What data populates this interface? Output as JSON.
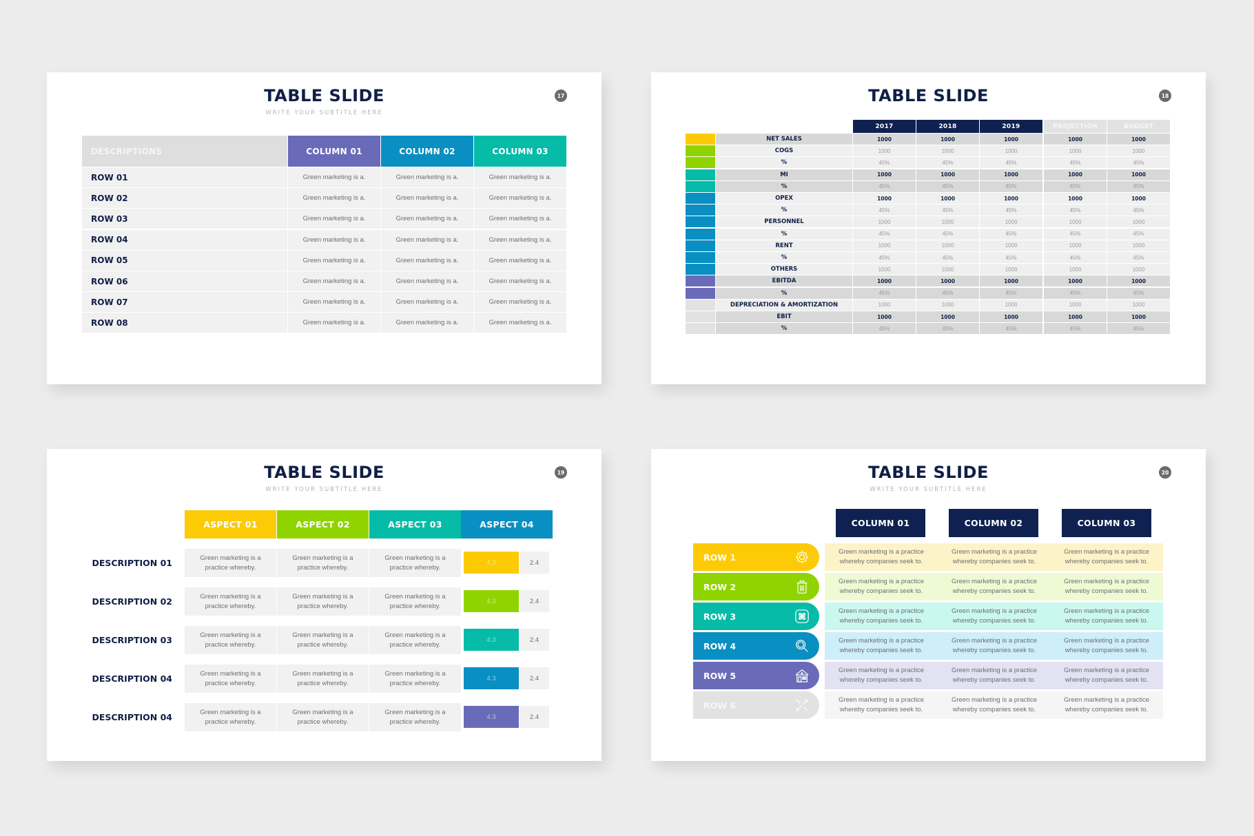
{
  "slides": [
    {
      "number": "17",
      "title": "TABLE SLIDE",
      "subtitle": "WRITE YOUR SUBTITLE HERE",
      "table": {
        "header_desc": "DESCRIPTIONS",
        "columns": [
          {
            "label": "COLUMN 01",
            "color": "#6a6bb8"
          },
          {
            "label": "COLUMN 02",
            "color": "#0a8fc2"
          },
          {
            "label": "COLUMN 03",
            "color": "#06bba8"
          }
        ],
        "rows": [
          {
            "label": "ROW 01",
            "cells": [
              "Green marketing is a.",
              "Green marketing is a.",
              "Green marketing is a."
            ]
          },
          {
            "label": "ROW 02",
            "cells": [
              "Green marketing is a.",
              "Green marketing is a.",
              "Green marketing is a."
            ]
          },
          {
            "label": "ROW 03",
            "cells": [
              "Green marketing is a.",
              "Green marketing is a.",
              "Green marketing is a."
            ]
          },
          {
            "label": "ROW 04",
            "cells": [
              "Green marketing is a.",
              "Green marketing is a.",
              "Green marketing is a."
            ]
          },
          {
            "label": "ROW 05",
            "cells": [
              "Green marketing is a.",
              "Green marketing is a.",
              "Green marketing is a."
            ]
          },
          {
            "label": "ROW 06",
            "cells": [
              "Green marketing is a.",
              "Green marketing is a.",
              "Green marketing is a."
            ]
          },
          {
            "label": "ROW 07",
            "cells": [
              "Green marketing is a.",
              "Green marketing is a.",
              "Green marketing is a."
            ]
          },
          {
            "label": "ROW 08",
            "cells": [
              "Green marketing is a.",
              "Green marketing is a.",
              "Green marketing is a."
            ]
          }
        ]
      }
    },
    {
      "number": "18",
      "title": "TABLE SLIDE",
      "table": {
        "columns": [
          {
            "label": "2017",
            "bg": "#0f2150",
            "fg": "#ffffff"
          },
          {
            "label": "2018",
            "bg": "#0f2150",
            "fg": "#ffffff"
          },
          {
            "label": "2019",
            "bg": "#0f2150",
            "fg": "#ffffff"
          },
          {
            "label": "PROJECTION",
            "bg": "#e2e2e2",
            "fg": "#f6f6f6"
          },
          {
            "label": "BUDGET",
            "bg": "#e2e2e2",
            "fg": "#f6f6f6"
          }
        ],
        "rows": [
          {
            "label": "NET SALES",
            "color": "#fccb05",
            "shade": "dark",
            "bold": true,
            "values": [
              "1000",
              "1000",
              "1000",
              "1000",
              "1000"
            ]
          },
          {
            "label": "COGS",
            "color": "#8fd400",
            "shade": "light",
            "bold": false,
            "values": [
              "1000",
              "1000",
              "1000",
              "1000",
              "1000"
            ]
          },
          {
            "label": "%",
            "color": "#8fd400",
            "shade": "light",
            "bold": false,
            "values": [
              "45%",
              "45%",
              "45%",
              "45%",
              "45%"
            ]
          },
          {
            "label": "MI",
            "color": "#06bba8",
            "shade": "dark",
            "bold": true,
            "values": [
              "1000",
              "1000",
              "1000",
              "1000",
              "1000"
            ]
          },
          {
            "label": "%",
            "color": "#06bba8",
            "shade": "dark",
            "bold": false,
            "values": [
              "45%",
              "45%",
              "45%",
              "45%",
              "45%"
            ]
          },
          {
            "label": "OPEX",
            "color": "#0a8fc2",
            "shade": "light",
            "bold": true,
            "values": [
              "1000",
              "1000",
              "1000",
              "1000",
              "1000"
            ]
          },
          {
            "label": "%",
            "color": "#0a8fc2",
            "shade": "light",
            "bold": false,
            "values": [
              "45%",
              "45%",
              "45%",
              "45%",
              "45%"
            ]
          },
          {
            "label": "PERSONNEL",
            "color": "#0a8fc2",
            "shade": "light",
            "bold": false,
            "values": [
              "1000",
              "1000",
              "1000",
              "1000",
              "1000"
            ]
          },
          {
            "label": "%",
            "color": "#0a8fc2",
            "shade": "light",
            "bold": false,
            "values": [
              "45%",
              "45%",
              "45%",
              "45%",
              "45%"
            ]
          },
          {
            "label": "RENT",
            "color": "#0a8fc2",
            "shade": "light",
            "bold": false,
            "values": [
              "1000",
              "1000",
              "1000",
              "1000",
              "1000"
            ]
          },
          {
            "label": "%",
            "color": "#0a8fc2",
            "shade": "light",
            "bold": false,
            "values": [
              "45%",
              "45%",
              "45%",
              "45%",
              "45%"
            ]
          },
          {
            "label": "OTHERS",
            "color": "#0a8fc2",
            "shade": "light",
            "bold": false,
            "values": [
              "1000",
              "1000",
              "1000",
              "1000",
              "1000"
            ]
          },
          {
            "label": "EBITDA",
            "color": "#6a6bb8",
            "shade": "dark",
            "bold": true,
            "values": [
              "1000",
              "1000",
              "1000",
              "1000",
              "1000"
            ]
          },
          {
            "label": "%",
            "color": "#6a6bb8",
            "shade": "dark",
            "bold": false,
            "values": [
              "45%",
              "45%",
              "45%",
              "45%",
              "45%"
            ]
          },
          {
            "label": "DEPRECIATION & AMORTIZATION",
            "color": "#e2e2e2",
            "shade": "light",
            "bold": false,
            "values": [
              "1000",
              "1000",
              "1000",
              "1000",
              "1000"
            ]
          },
          {
            "label": "EBIT",
            "color": "#e2e2e2",
            "shade": "dark",
            "bold": true,
            "values": [
              "1000",
              "1000",
              "1000",
              "1000",
              "1000"
            ]
          },
          {
            "label": "%",
            "color": "#e2e2e2",
            "shade": "dark",
            "bold": false,
            "values": [
              "45%",
              "45%",
              "45%",
              "45%",
              "45%"
            ]
          }
        ]
      }
    },
    {
      "number": "19",
      "title": "TABLE SLIDE",
      "subtitle": "WRITE YOUR SUBTITLE HERE",
      "table": {
        "columns": [
          {
            "label": "ASPECT 01",
            "color": "#fccb05"
          },
          {
            "label": "ASPECT 02",
            "color": "#8fd400"
          },
          {
            "label": "ASPECT 03",
            "color": "#06bba8"
          },
          {
            "label": "ASPECT 04",
            "color": "#0a8fc2"
          }
        ],
        "rows": [
          {
            "label": "DESCRIPTION 01",
            "cells": [
              "Green marketing is a practice whereby.",
              "Green marketing is a practice whereby.",
              "Green marketing is a practice whereby."
            ],
            "bar_value": "4.3",
            "value": "2.4",
            "bar_color": "#fccb05"
          },
          {
            "label": "DESCRIPTION 02",
            "cells": [
              "Green marketing is a practice whereby.",
              "Green marketing is a practice whereby.",
              "Green marketing is a practice whereby."
            ],
            "bar_value": "4.3",
            "value": "2.4",
            "bar_color": "#8fd400"
          },
          {
            "label": "DESCRIPTION 03",
            "cells": [
              "Green marketing is a practice whereby.",
              "Green marketing is a practice whereby.",
              "Green marketing is a practice whereby."
            ],
            "bar_value": "4.3",
            "value": "2.4",
            "bar_color": "#06bba8"
          },
          {
            "label": "DESCRIPTION 04",
            "cells": [
              "Green marketing is a practice whereby.",
              "Green marketing is a practice whereby.",
              "Green marketing is a practice whereby."
            ],
            "bar_value": "4.3",
            "value": "2.4",
            "bar_color": "#0a8fc2"
          },
          {
            "label": "DESCRIPTION 04",
            "cells": [
              "Green marketing is a practice whereby.",
              "Green marketing is a practice whereby.",
              "Green marketing is a practice whereby."
            ],
            "bar_value": "4.3",
            "value": "2.4",
            "bar_color": "#6a6bb8"
          }
        ]
      }
    },
    {
      "number": "20",
      "title": "TABLE SLIDE",
      "subtitle": "WRITE YOUR SUBTITLE HERE",
      "table": {
        "columns": [
          "COLUMN 01",
          "COLUMN 02",
          "COLUMN 03"
        ],
        "rows": [
          {
            "label": "ROW 1",
            "icon": "gear-icon",
            "color": "#fccb05",
            "band": "#fdf3c8",
            "label_color": "#ffffff",
            "cells": [
              "Green marketing is a practice whereby companies seek to.",
              "Green marketing is a practice whereby companies seek to.",
              "Green marketing is a practice whereby companies seek to."
            ]
          },
          {
            "label": "ROW 2",
            "icon": "trash-icon",
            "color": "#8fd400",
            "band": "#eefad4",
            "label_color": "#ffffff",
            "cells": [
              "Green marketing is a practice whereby companies seek to.",
              "Green marketing is a practice whereby companies seek to.",
              "Green marketing is a practice whereby companies seek to."
            ]
          },
          {
            "label": "ROW 3",
            "icon": "bandage-icon",
            "color": "#06bba8",
            "band": "#cbf7f1",
            "label_color": "#ffffff",
            "cells": [
              "Green marketing is a practice whereby companies seek to.",
              "Green marketing is a practice whereby companies seek to.",
              "Green marketing is a practice whereby companies seek to."
            ]
          },
          {
            "label": "ROW 4",
            "icon": "magnifier-icon",
            "color": "#0a8fc2",
            "band": "#cdeefa",
            "label_color": "#ffffff",
            "cells": [
              "Green marketing is a practice whereby companies seek to.",
              "Green marketing is a practice whereby companies seek to.",
              "Green marketing is a practice whereby companies seek to."
            ]
          },
          {
            "label": "ROW 5",
            "icon": "house-icon",
            "color": "#6a6bb8",
            "band": "#e2e2f2",
            "label_color": "#ffffff",
            "cells": [
              "Green marketing is a practice whereby companies seek to.",
              "Green marketing is a practice whereby companies seek to.",
              "Green marketing is a practice whereby companies seek to."
            ]
          },
          {
            "label": "ROW 6",
            "icon": "tools-icon",
            "color": "#e2e2e2",
            "band": "#f5f5f5",
            "label_color": "#f6f6f6",
            "cells": [
              "Green marketing is a practice whereby companies seek to.",
              "Green marketing is a practice whereby companies seek to.",
              "Green marketing is a practice whereby companies seek to."
            ]
          }
        ]
      }
    }
  ]
}
